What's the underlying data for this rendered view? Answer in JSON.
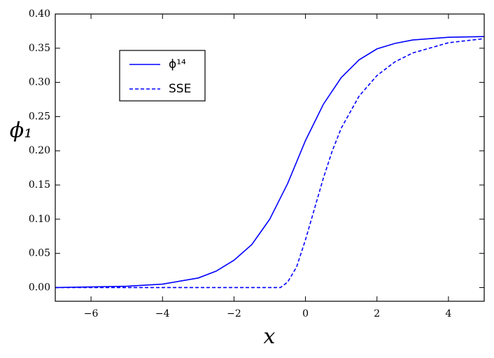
{
  "chart_data": {
    "type": "line",
    "xlabel": "x",
    "ylabel": "ϕ₁",
    "xlim": [
      -7,
      5
    ],
    "ylim": [
      -0.02,
      0.4
    ],
    "xticks": [
      {
        "value": -6,
        "label": "−6"
      },
      {
        "value": -4,
        "label": "−4"
      },
      {
        "value": -2,
        "label": "−2"
      },
      0,
      2,
      4
    ],
    "yticks": [
      {
        "value": 0,
        "label": "0.00"
      },
      {
        "value": 0.05,
        "label": "0.05"
      },
      {
        "value": 0.1,
        "label": "0.10"
      },
      {
        "value": 0.15,
        "label": "0.15"
      },
      {
        "value": 0.2,
        "label": "0.20"
      },
      {
        "value": 0.25,
        "label": "0.25"
      },
      {
        "value": 0.3,
        "label": "0.30"
      },
      {
        "value": 0.35,
        "label": "0.35"
      },
      {
        "value": 0.4,
        "label": "0.40"
      }
    ],
    "legend": "upper left",
    "series": [
      {
        "name": "ϕ¹⁴",
        "color": "#0000ff",
        "dash": "solid",
        "x": [
          -7,
          -6,
          -5,
          -4,
          -3,
          -2.5,
          -2,
          -1.5,
          -1,
          -0.5,
          0,
          0.5,
          1,
          1.5,
          2,
          2.5,
          3,
          4,
          5
        ],
        "values": [
          0.0,
          0.001,
          0.002,
          0.005,
          0.014,
          0.024,
          0.04,
          0.063,
          0.1,
          0.152,
          0.215,
          0.268,
          0.307,
          0.333,
          0.349,
          0.357,
          0.362,
          0.366,
          0.367
        ]
      },
      {
        "name": "SSE",
        "color": "#0000ff",
        "dash": "dashed",
        "x": [
          -7,
          -4,
          -1,
          -0.7,
          -0.5,
          -0.25,
          0,
          0.25,
          0.5,
          0.75,
          1,
          1.5,
          2,
          2.5,
          3,
          4,
          5
        ],
        "values": [
          0.0,
          0.0,
          0.0,
          0.0,
          0.008,
          0.03,
          0.07,
          0.115,
          0.16,
          0.2,
          0.233,
          0.28,
          0.31,
          0.33,
          0.343,
          0.358,
          0.364
        ]
      }
    ]
  }
}
